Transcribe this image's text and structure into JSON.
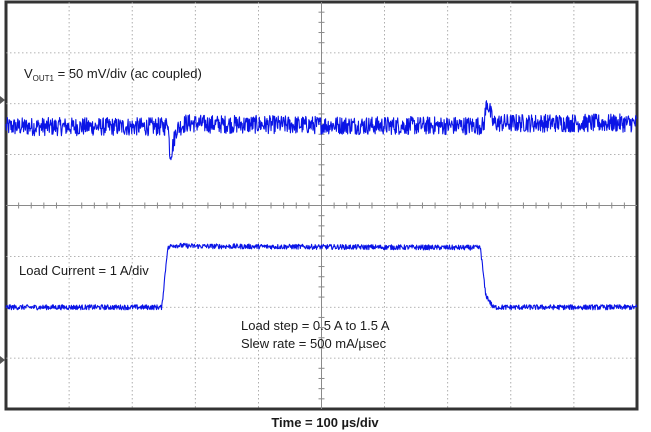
{
  "chart_data": {
    "type": "line",
    "title": "",
    "xlabel": "Time = 100 µs/div",
    "grid": true,
    "divisions": {
      "x": 10,
      "y": 8
    },
    "series": [
      {
        "color": "#0a14e6",
        "label_main": "V",
        "label_sub": "OUT1",
        "label_rest": " = 50 mV/div (ac coupled)",
        "noise_divs": 0.18,
        "points": [
          [
            0,
            1.55
          ],
          [
            2.53,
            1.55
          ],
          [
            2.56,
            1.72
          ],
          [
            2.6,
            1.0
          ],
          [
            2.63,
            1.1
          ],
          [
            2.7,
            1.5
          ],
          [
            2.85,
            1.62
          ],
          [
            3.2,
            1.6
          ],
          [
            6,
            1.57
          ],
          [
            7.5,
            1.57
          ],
          [
            7.57,
            1.56
          ],
          [
            7.62,
            2.05
          ],
          [
            7.66,
            1.9
          ],
          [
            7.72,
            1.62
          ],
          [
            10,
            1.62
          ]
        ]
      },
      {
        "color": "#0a14e6",
        "label": "Load Current = 1 A/div",
        "noise_divs": 0.05,
        "points": [
          [
            0,
            -2.0
          ],
          [
            2.47,
            -2.0
          ],
          [
            2.56,
            -0.85
          ],
          [
            2.63,
            -0.78
          ],
          [
            3.0,
            -0.8
          ],
          [
            7.5,
            -0.83
          ],
          [
            7.52,
            -0.84
          ],
          [
            7.6,
            -1.75
          ],
          [
            7.72,
            -2.0
          ],
          [
            10,
            -2.0
          ]
        ]
      }
    ]
  },
  "annotations": {
    "line1": "Load step = 0.5 A to 1.5 A",
    "line2": "Slew rate = 500 mA/µsec"
  }
}
